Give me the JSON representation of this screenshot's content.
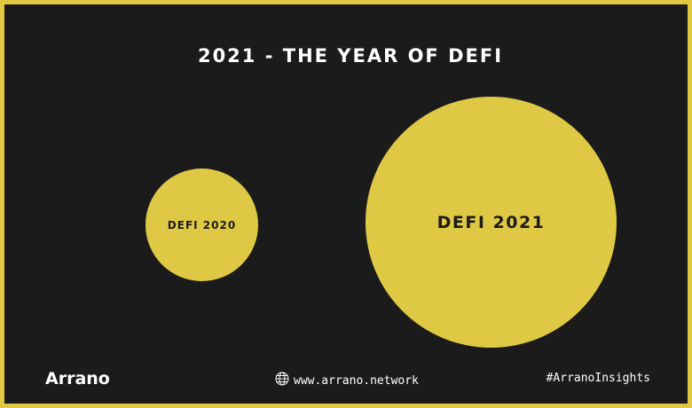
{
  "title": "2021 - THE YEAR OF DEFI",
  "bubbles": [
    {
      "label": "DEFI 2020"
    },
    {
      "label": "DEFI 2021"
    }
  ],
  "footer": {
    "logo": "Arrano",
    "website": "www.arrano.network",
    "hashtag": "#ArranoInsights"
  },
  "colors": {
    "background": "#1b1b1c",
    "accent": "#dfc944",
    "border": "#e0c93e",
    "text": "#ffffff"
  },
  "icons": [
    "globe-icon"
  ]
}
